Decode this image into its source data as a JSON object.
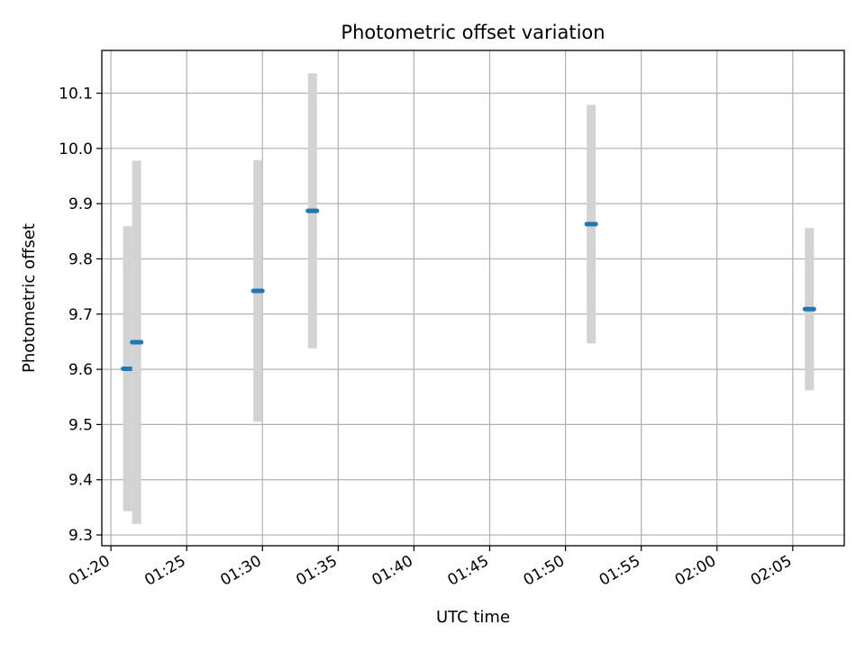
{
  "chart_data": {
    "type": "scatter",
    "title": "Photometric offset variation",
    "xlabel": "UTC time",
    "ylabel": "Photometric offset",
    "x_ticks": [
      "01:20",
      "01:25",
      "01:30",
      "01:35",
      "01:40",
      "01:45",
      "01:50",
      "01:55",
      "02:00",
      "02:05"
    ],
    "y_ticks": [
      "9.3",
      "9.4",
      "9.5",
      "9.6",
      "9.7",
      "9.8",
      "9.9",
      "10.0",
      "10.1"
    ],
    "xlim": [
      "01:19:24",
      "02:08:24"
    ],
    "ylim": [
      9.2805,
      10.1775
    ],
    "grid": true,
    "marker_color": "#1f77b4",
    "errorbar_color": "#d3d3d3",
    "points": [
      {
        "x": "01:21:06",
        "y": 9.601,
        "yerr": 0.258
      },
      {
        "x": "01:21:42",
        "y": 9.649,
        "yerr": 0.329
      },
      {
        "x": "01:29:42",
        "y": 9.742,
        "yerr": 0.237
      },
      {
        "x": "01:33:18",
        "y": 9.887,
        "yerr": 0.249
      },
      {
        "x": "01:51:42",
        "y": 9.863,
        "yerr": 0.216
      },
      {
        "x": "02:06:06",
        "y": 9.709,
        "yerr": 0.147
      }
    ]
  }
}
